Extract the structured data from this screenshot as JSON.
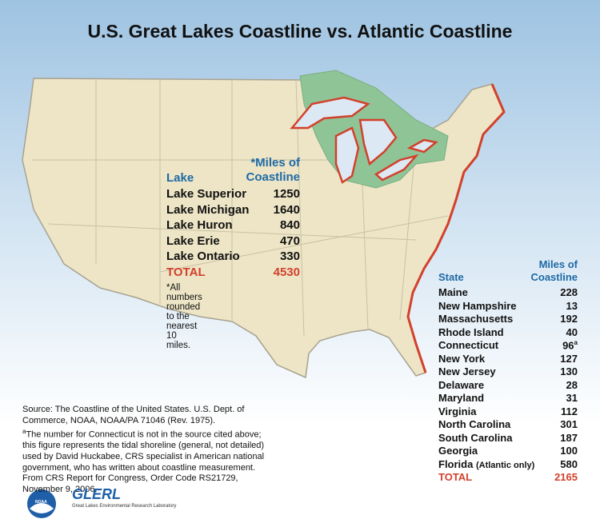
{
  "title": "U.S. Great Lakes Coastline vs. Atlantic Coastline",
  "lakes_table": {
    "header": {
      "name": "Lake",
      "miles": "*Miles of Coastline"
    },
    "rows": [
      {
        "name": "Lake Superior",
        "miles": 1250
      },
      {
        "name": "Lake Michigan",
        "miles": 1640
      },
      {
        "name": "Lake Huron",
        "miles": 840
      },
      {
        "name": "Lake Erie",
        "miles": 470
      },
      {
        "name": "Lake Ontario",
        "miles": 330
      }
    ],
    "total": {
      "name": "TOTAL",
      "miles": 4530
    },
    "note": "*All numbers rounded to the nearest 10 miles."
  },
  "states_table": {
    "header": {
      "name": "State",
      "miles": "Miles of Coastline"
    },
    "rows": [
      {
        "name": "Maine",
        "miles": 228
      },
      {
        "name": "New Hampshire",
        "miles": 13
      },
      {
        "name": "Massachusetts",
        "miles": 192
      },
      {
        "name": "Rhode Island",
        "miles": 40
      },
      {
        "name": "Connecticut",
        "miles": 96,
        "footnote": "a"
      },
      {
        "name": "New York",
        "miles": 127
      },
      {
        "name": "New Jersey",
        "miles": 130
      },
      {
        "name": "Delaware",
        "miles": 28
      },
      {
        "name": "Maryland",
        "miles": 31
      },
      {
        "name": "Virginia",
        "miles": 112
      },
      {
        "name": "North Carolina",
        "miles": 301
      },
      {
        "name": "South Carolina",
        "miles": 187
      },
      {
        "name": "Georgia",
        "miles": 100
      },
      {
        "name": "Florida",
        "qualifier": "(Atlantic only)",
        "miles": 580
      }
    ],
    "total": {
      "name": "TOTAL",
      "miles": 2165
    }
  },
  "source": {
    "citation": "Source: The Coastline of the United States. U.S. Dept. of Commerce, NOAA, NOAA/PA 71046 (Rev. 1975).",
    "footnote": {
      "marker": "a",
      "text": "The number for Connecticut is not in the source cited above; this figure represents the tidal shoreline (general, not detailed) used by David Huckabee, CRS specialist in American national government, who has written about coastline measurement. From CRS Report for Congress, Order Code RS21729, November 9, 2006."
    }
  },
  "logos": {
    "noaa": "NOAA",
    "glerl": "GLERL",
    "glerl_name": "Great Lakes Environmental Research Laboratory"
  }
}
